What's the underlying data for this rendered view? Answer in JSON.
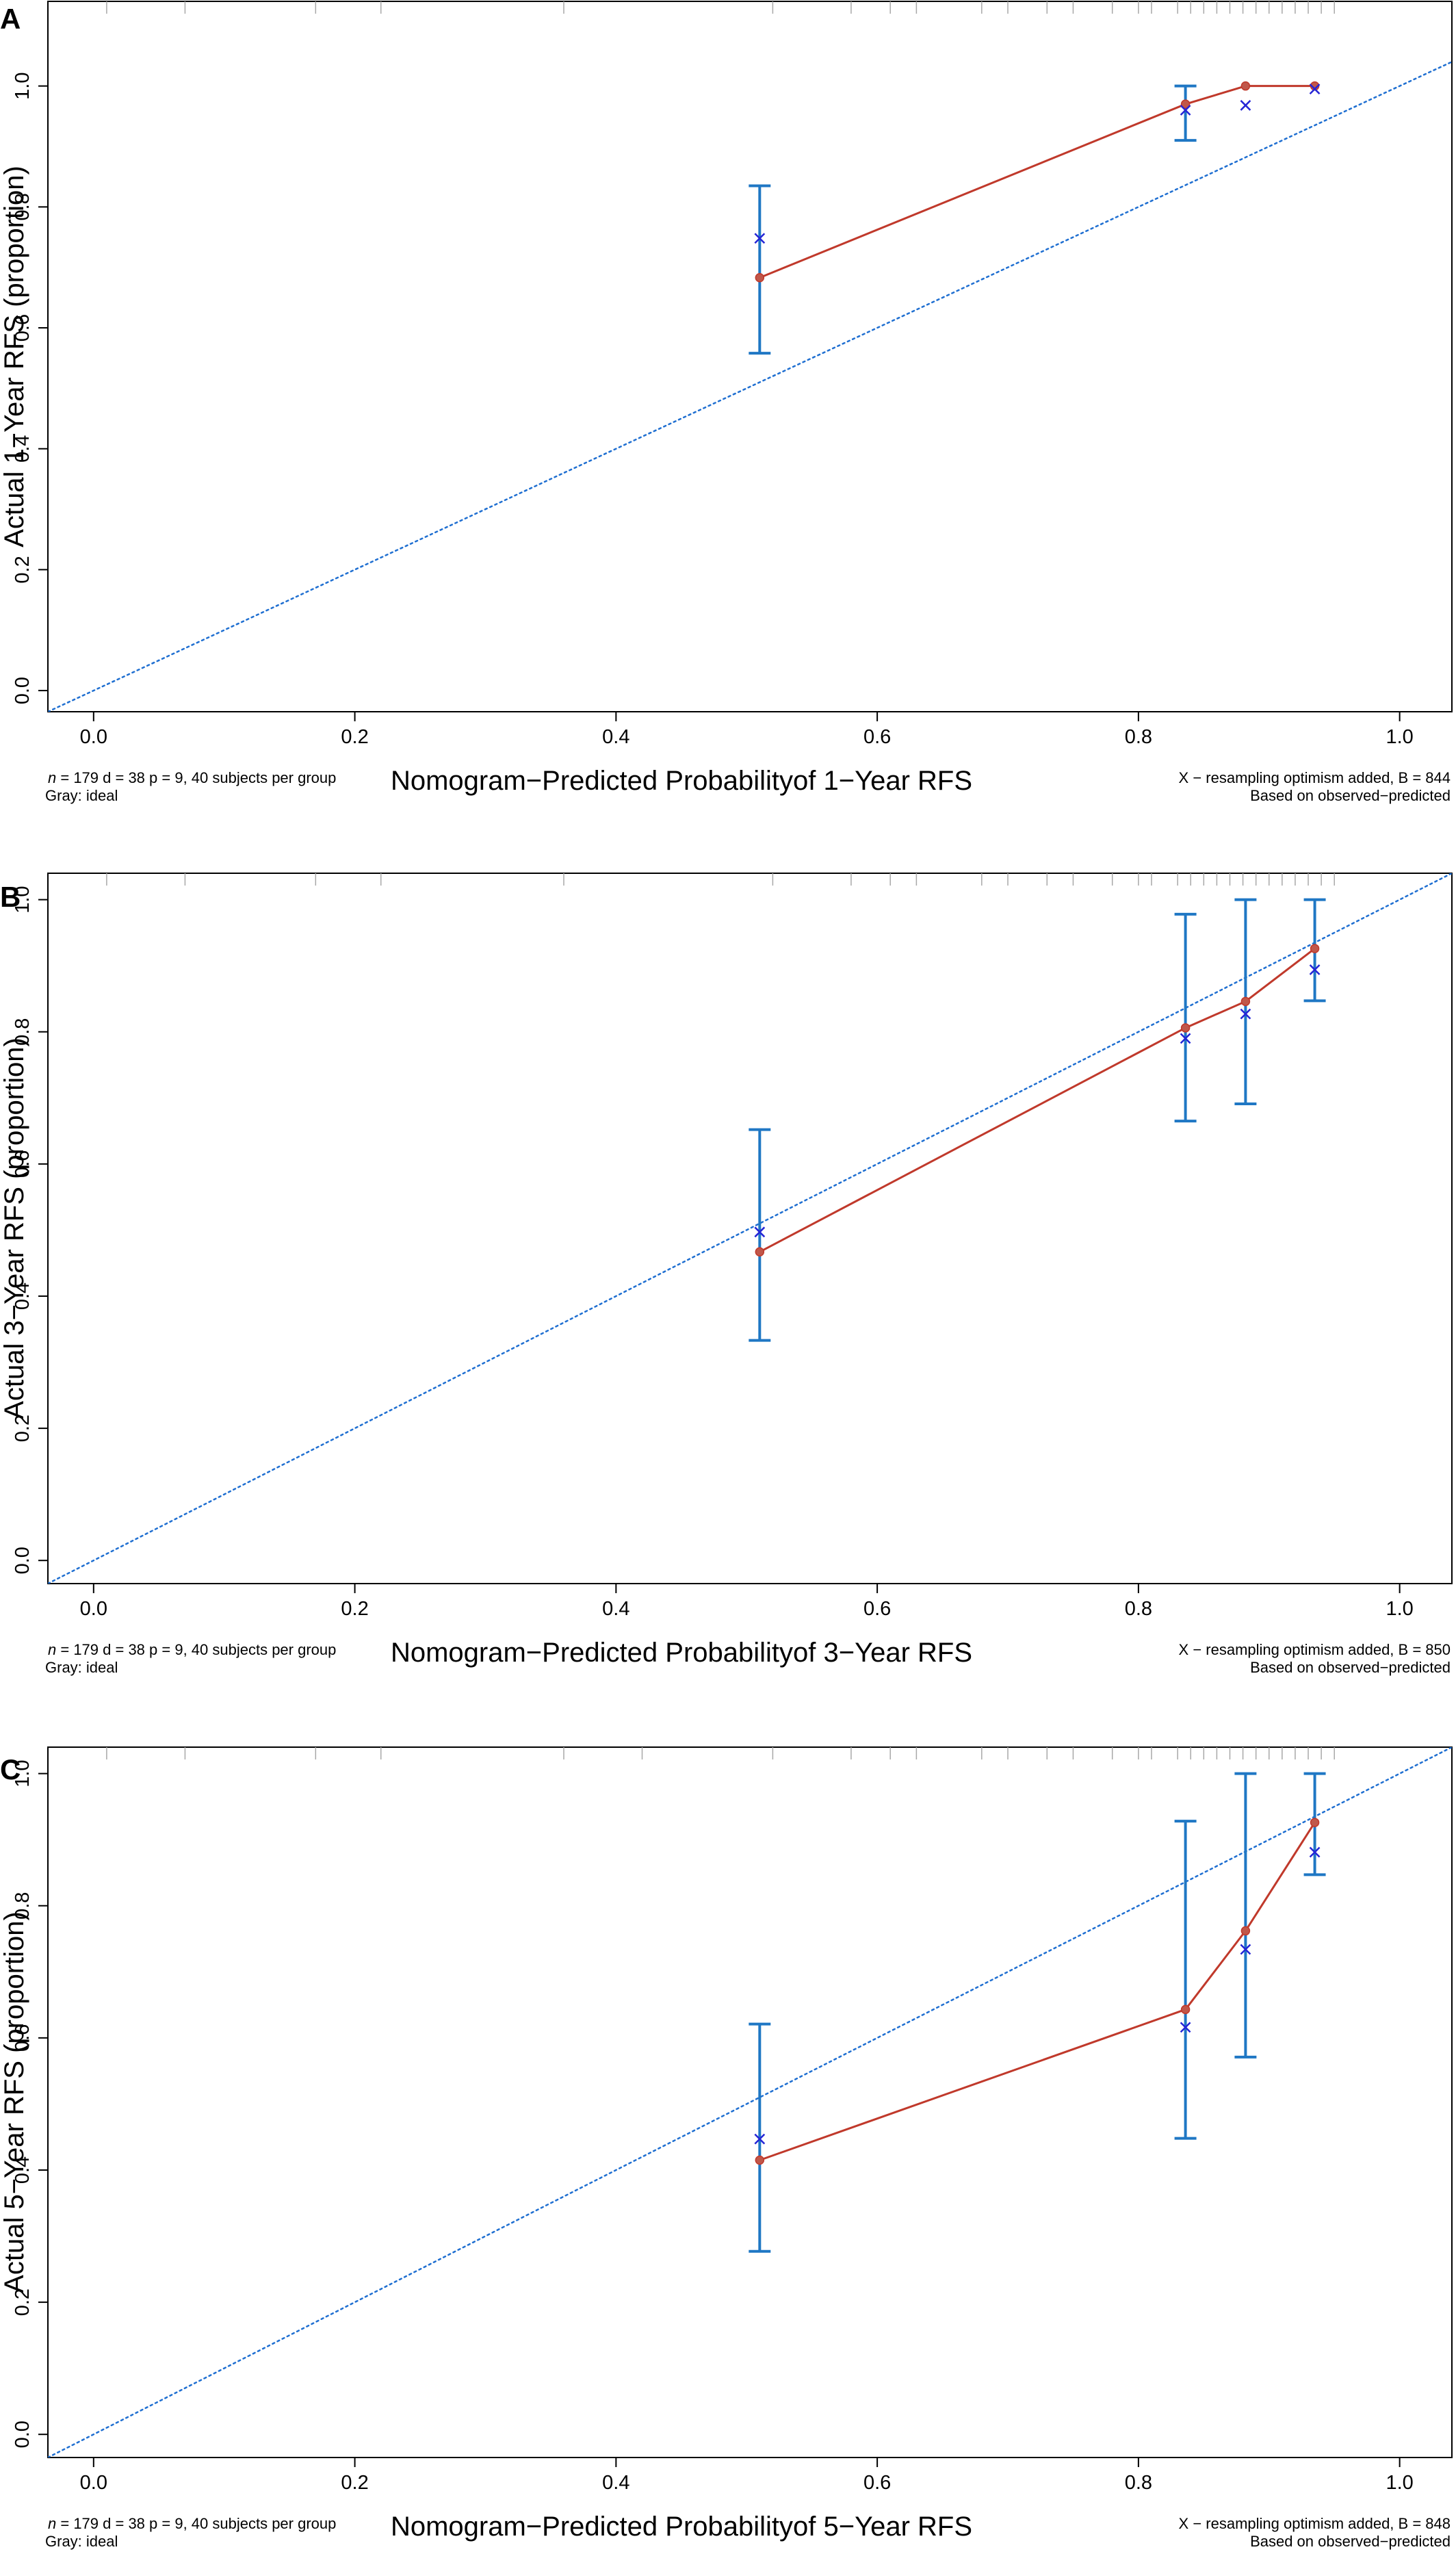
{
  "colors": {
    "ideal": "#1f6fd1",
    "apparent": "#c0392b",
    "point_fill": "#c0574a",
    "bias_corrected": "#2424d6",
    "error_bar": "#1f77c4",
    "rug": "#a8a8a8",
    "axis": "#000000"
  },
  "chart_data": [
    {
      "panel": "A",
      "type": "scatter",
      "xlabel": "Nomogram−Predicted Probabilityof 1−Year RFS",
      "ylabel": "Actual 1−Year RFS (proportion)",
      "xlim": [
        -0.035,
        1.04
      ],
      "ylim": [
        -0.035,
        1.14
      ],
      "x_ticks": [
        "0.0",
        "0.2",
        "0.4",
        "0.6",
        "0.8",
        "1.0"
      ],
      "y_ticks": [
        "0.0",
        "0.2",
        "0.4",
        "0.6",
        "0.8",
        "1.0"
      ],
      "grid": false,
      "ideal_line": {
        "style": "dotted",
        "from": [
          0,
          0
        ],
        "to": [
          1,
          1
        ]
      },
      "apparent": {
        "x": [
          0.51,
          0.836,
          0.882,
          0.935
        ],
        "y": [
          0.683,
          0.97,
          1.0,
          1.0
        ]
      },
      "bias_corrected": {
        "x": [
          0.51,
          0.836,
          0.882,
          0.935
        ],
        "y": [
          0.748,
          0.96,
          0.968,
          0.995
        ]
      },
      "error_bars": [
        {
          "x": 0.51,
          "lower": 0.558,
          "upper": 0.835
        },
        {
          "x": 0.836,
          "lower": 0.91,
          "upper": 1.0
        }
      ],
      "rug_x": [
        0.01,
        0.07,
        0.17,
        0.22,
        0.36,
        0.52,
        0.58,
        0.61,
        0.63,
        0.68,
        0.7,
        0.73,
        0.75,
        0.78,
        0.8,
        0.81,
        0.83,
        0.84,
        0.85,
        0.86,
        0.87,
        0.88,
        0.89,
        0.9,
        0.91,
        0.92,
        0.93,
        0.94,
        0.95
      ],
      "note_left_1": " = 179 d = 38 p = 9, 40 subjects per group",
      "note_left_2": "Gray: ideal",
      "note_right_1": "X − resampling optimism added, B = 844",
      "note_right_2": "Based on observed−predicted"
    },
    {
      "panel": "B",
      "type": "scatter",
      "xlabel": "Nomogram−Predicted Probabilityof 3−Year RFS",
      "ylabel": "Actual 3−Year RFS (proportion)",
      "xlim": [
        -0.035,
        1.04
      ],
      "ylim": [
        -0.035,
        1.04
      ],
      "x_ticks": [
        "0.0",
        "0.2",
        "0.4",
        "0.6",
        "0.8",
        "1.0"
      ],
      "y_ticks": [
        "0.0",
        "0.2",
        "0.4",
        "0.6",
        "0.8",
        "1.0"
      ],
      "grid": false,
      "ideal_line": {
        "style": "dotted",
        "from": [
          0,
          0
        ],
        "to": [
          1,
          1
        ]
      },
      "apparent": {
        "x": [
          0.51,
          0.836,
          0.882,
          0.935
        ],
        "y": [
          0.467,
          0.806,
          0.846,
          0.926
        ]
      },
      "bias_corrected": {
        "x": [
          0.51,
          0.836,
          0.882,
          0.935
        ],
        "y": [
          0.497,
          0.79,
          0.827,
          0.894
        ]
      },
      "error_bars": [
        {
          "x": 0.51,
          "lower": 0.333,
          "upper": 0.652
        },
        {
          "x": 0.836,
          "lower": 0.665,
          "upper": 0.978
        },
        {
          "x": 0.882,
          "lower": 0.691,
          "upper": 1.0
        },
        {
          "x": 0.935,
          "lower": 0.847,
          "upper": 1.0
        }
      ],
      "rug_x": [
        0.01,
        0.07,
        0.17,
        0.22,
        0.36,
        0.52,
        0.58,
        0.61,
        0.63,
        0.68,
        0.7,
        0.73,
        0.75,
        0.78,
        0.8,
        0.81,
        0.83,
        0.84,
        0.85,
        0.86,
        0.87,
        0.88,
        0.89,
        0.9,
        0.91,
        0.92,
        0.93,
        0.94,
        0.95
      ],
      "note_left_1": " = 179 d = 38 p = 9, 40 subjects per group",
      "note_left_2": "Gray: ideal",
      "note_right_1": "X − resampling optimism added, B = 850",
      "note_right_2": "Based on observed−predicted"
    },
    {
      "panel": "C",
      "type": "scatter",
      "xlabel": "Nomogram−Predicted Probabilityof 5−Year RFS",
      "ylabel": "Actual 5−Year RFS (proportion)",
      "xlim": [
        -0.035,
        1.04
      ],
      "ylim": [
        -0.035,
        1.04
      ],
      "x_ticks": [
        "0.0",
        "0.2",
        "0.4",
        "0.6",
        "0.8",
        "1.0"
      ],
      "y_ticks": [
        "0.0",
        "0.2",
        "0.4",
        "0.6",
        "0.8",
        "1.0"
      ],
      "grid": false,
      "ideal_line": {
        "style": "dotted",
        "from": [
          0,
          0
        ],
        "to": [
          1,
          1
        ]
      },
      "apparent": {
        "x": [
          0.51,
          0.836,
          0.882,
          0.935
        ],
        "y": [
          0.415,
          0.643,
          0.762,
          0.926
        ]
      },
      "bias_corrected": {
        "x": [
          0.51,
          0.836,
          0.882,
          0.935
        ],
        "y": [
          0.447,
          0.616,
          0.734,
          0.881
        ]
      },
      "error_bars": [
        {
          "x": 0.51,
          "lower": 0.277,
          "upper": 0.621
        },
        {
          "x": 0.836,
          "lower": 0.448,
          "upper": 0.928
        },
        {
          "x": 0.882,
          "lower": 0.571,
          "upper": 1.0
        },
        {
          "x": 0.935,
          "lower": 0.847,
          "upper": 1.0
        }
      ],
      "rug_x": [
        0.01,
        0.07,
        0.17,
        0.22,
        0.36,
        0.42,
        0.52,
        0.58,
        0.61,
        0.63,
        0.68,
        0.7,
        0.73,
        0.75,
        0.78,
        0.8,
        0.81,
        0.83,
        0.84,
        0.85,
        0.86,
        0.87,
        0.88,
        0.89,
        0.9,
        0.91,
        0.92,
        0.93,
        0.94,
        0.95
      ],
      "note_left_1": " = 179 d = 38 p = 9, 40 subjects per group",
      "note_left_2": "Gray: ideal",
      "note_right_1": "X − resampling optimism added, B = 848",
      "note_right_2": "Based on observed−predicted"
    }
  ]
}
